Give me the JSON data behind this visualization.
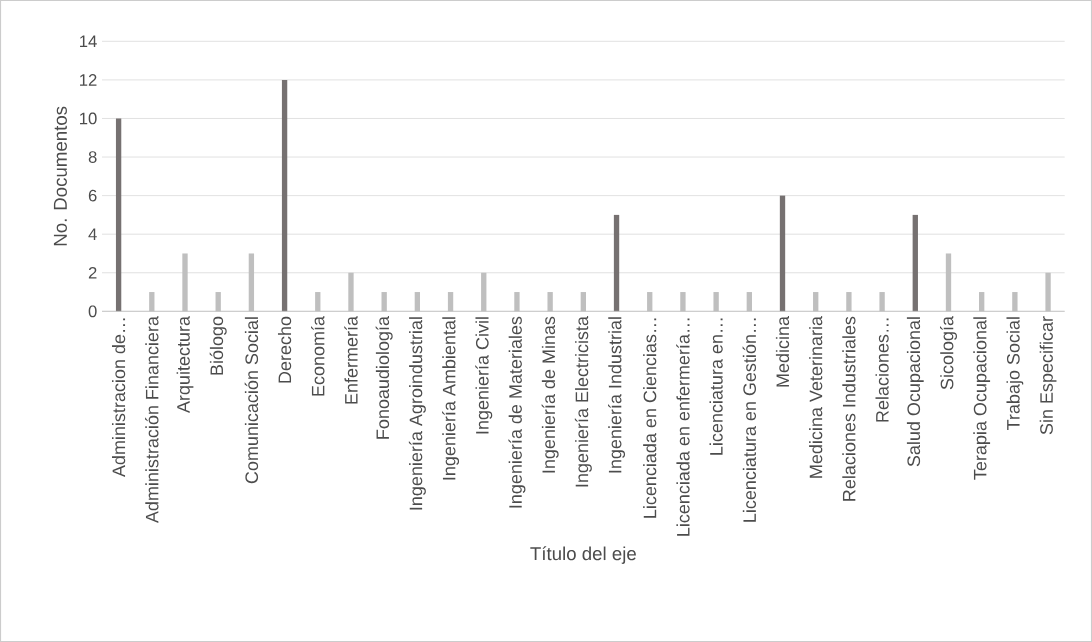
{
  "chart_data": {
    "type": "bar",
    "xlabel": "Título del eje",
    "ylabel": "No. Documentos",
    "categories": [
      "Administracion de…",
      "Administración Financiera",
      "Arquitectura",
      "Biólogo",
      "Comunicación Social",
      "Derecho",
      "Economía",
      "Enfermería",
      "Fonoaudiología",
      "Ingeniería Agroindustrial",
      "Ingeniería Ambiental",
      "Ingeniería Civil",
      "Ingeniería de Materiales",
      "Ingeniería de Minas",
      "Ingeniería Electricista",
      "Ingeniería Industrial",
      "Licenciada en Ciencias…",
      "Licenciada en enfermería…",
      "Licenciatura en…",
      "Licenciatura en Gestión…",
      "Medicina",
      "Medicina Veterinaria",
      "Relaciones Industriales",
      "Relaciones…",
      "Salud Ocupacional",
      "Sicología",
      "Terapia Ocupacional",
      "Trabajo Social",
      "Sin Especificar"
    ],
    "values": [
      10,
      1,
      3,
      1,
      3,
      12,
      1,
      2,
      1,
      1,
      1,
      2,
      1,
      1,
      1,
      5,
      1,
      1,
      1,
      1,
      6,
      1,
      1,
      1,
      5,
      3,
      1,
      1,
      2
    ],
    "colors": [
      "#767171",
      "#bfbfbf",
      "#bfbfbf",
      "#bfbfbf",
      "#bfbfbf",
      "#767171",
      "#bfbfbf",
      "#bfbfbf",
      "#bfbfbf",
      "#bfbfbf",
      "#bfbfbf",
      "#bfbfbf",
      "#bfbfbf",
      "#bfbfbf",
      "#bfbfbf",
      "#767171",
      "#bfbfbf",
      "#bfbfbf",
      "#bfbfbf",
      "#bfbfbf",
      "#767171",
      "#bfbfbf",
      "#bfbfbf",
      "#bfbfbf",
      "#767171",
      "#bfbfbf",
      "#bfbfbf",
      "#bfbfbf",
      "#bfbfbf"
    ],
    "ylim": [
      0,
      14
    ],
    "yticks": [
      0,
      2,
      4,
      6,
      8,
      10,
      12,
      14
    ],
    "grid": "y"
  }
}
